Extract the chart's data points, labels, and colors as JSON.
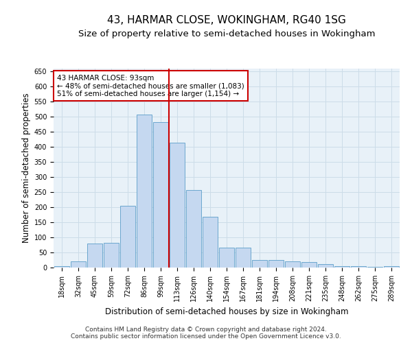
{
  "title": "43, HARMAR CLOSE, WOKINGHAM, RG40 1SG",
  "subtitle": "Size of property relative to semi-detached houses in Wokingham",
  "xlabel": "Distribution of semi-detached houses by size in Wokingham",
  "ylabel": "Number of semi-detached properties",
  "categories": [
    "18sqm",
    "32sqm",
    "45sqm",
    "59sqm",
    "72sqm",
    "86sqm",
    "99sqm",
    "113sqm",
    "126sqm",
    "140sqm",
    "154sqm",
    "167sqm",
    "181sqm",
    "194sqm",
    "208sqm",
    "221sqm",
    "235sqm",
    "248sqm",
    "262sqm",
    "275sqm",
    "289sqm"
  ],
  "values": [
    5,
    20,
    80,
    82,
    205,
    508,
    482,
    415,
    258,
    168,
    67,
    67,
    25,
    25,
    20,
    19,
    12,
    5,
    4,
    2,
    5
  ],
  "bar_color": "#c5d8f0",
  "bar_edge_color": "#5a9dc8",
  "vline_x": 6.5,
  "vline_color": "#cc0000",
  "annotation_text": "43 HARMAR CLOSE: 93sqm\n← 48% of semi-detached houses are smaller (1,083)\n51% of semi-detached houses are larger (1,154) →",
  "annotation_box_color": "#ffffff",
  "annotation_box_edge": "#cc0000",
  "footer_line1": "Contains HM Land Registry data © Crown copyright and database right 2024.",
  "footer_line2": "Contains public sector information licensed under the Open Government Licence v3.0.",
  "ylim": [
    0,
    660
  ],
  "yticks": [
    0,
    50,
    100,
    150,
    200,
    250,
    300,
    350,
    400,
    450,
    500,
    550,
    600,
    650
  ],
  "grid_color": "#ccdce8",
  "background_color": "#e8f1f8",
  "title_fontsize": 11,
  "subtitle_fontsize": 9.5,
  "axis_label_fontsize": 8.5,
  "tick_fontsize": 7,
  "footer_fontsize": 6.5,
  "annotation_fontsize": 7.5
}
